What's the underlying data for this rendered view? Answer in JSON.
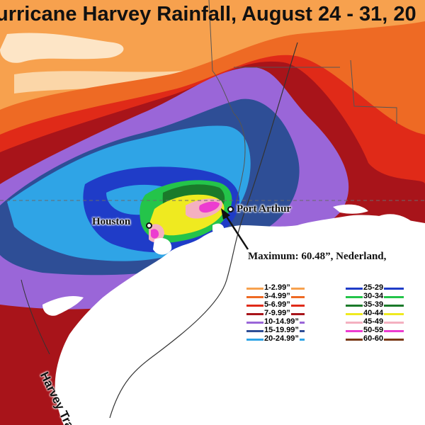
{
  "title": "urricane Harvey Rainfall, August 24 - 31, 20",
  "cities": {
    "houston": "Houston",
    "port_arthur": "Port Arthur"
  },
  "annotation": {
    "maximum": "Maximum: 60.48”, Nederland,"
  },
  "track_label": "Harvey Track",
  "legend": {
    "items": [
      {
        "label": "1-2.99”",
        "color": "#f7a14e"
      },
      {
        "label": "3-4.99”",
        "color": "#ee6a24"
      },
      {
        "label": "5-6.99”",
        "color": "#e02a18"
      },
      {
        "label": "7-9.99”",
        "color": "#a8141a"
      },
      {
        "label": "10-14.99”",
        "color": "#9a66d8"
      },
      {
        "label": "15-19.99”",
        "color": "#2e4e96"
      },
      {
        "label": "20-24.99”",
        "color": "#2fa4e6"
      },
      {
        "label": "25-29",
        "color": "#1f3cc8"
      },
      {
        "label": "30-34",
        "color": "#24c44a"
      },
      {
        "label": "35-39",
        "color": "#1a7a2a"
      },
      {
        "label": "40-44",
        "color": "#efea20"
      },
      {
        "label": "45-49",
        "color": "#f4b0c0"
      },
      {
        "label": "50-59",
        "color": "#ec3cd0"
      },
      {
        "label": "60-60",
        "color": "#7a3a18"
      }
    ]
  },
  "colors": {
    "land_base": "#ffffff",
    "gulf": "#ffffff"
  }
}
